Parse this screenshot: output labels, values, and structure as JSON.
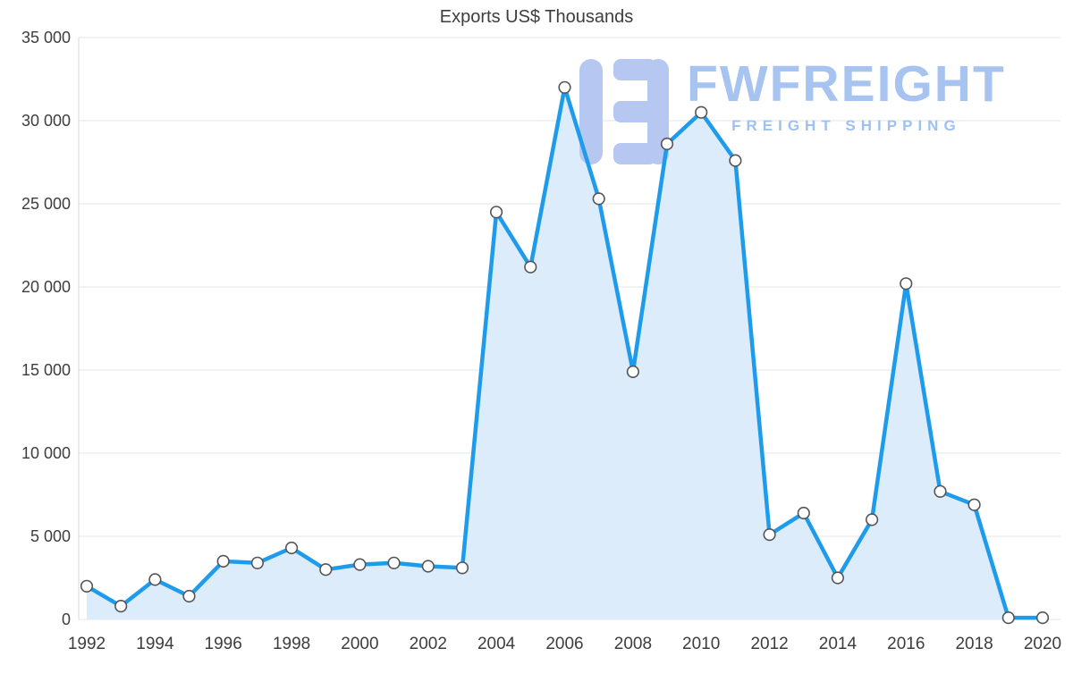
{
  "chart_data": {
    "type": "area",
    "title": "Exports US$ Thousands",
    "x": [
      1992,
      1993,
      1994,
      1995,
      1996,
      1997,
      1998,
      1999,
      2000,
      2001,
      2002,
      2003,
      2004,
      2005,
      2006,
      2007,
      2008,
      2009,
      2010,
      2011,
      2012,
      2013,
      2014,
      2015,
      2016,
      2017,
      2018,
      2019,
      2020
    ],
    "values": [
      2000,
      800,
      2400,
      1400,
      3500,
      3400,
      4300,
      3000,
      3300,
      3400,
      3200,
      3100,
      24500,
      21200,
      32000,
      25300,
      14900,
      28600,
      30500,
      27600,
      5100,
      6400,
      2500,
      6000,
      20200,
      7700,
      6900,
      100,
      100
    ],
    "ylim": [
      0,
      35000
    ],
    "ytick_values": [
      0,
      5000,
      10000,
      15000,
      20000,
      25000,
      30000,
      35000
    ],
    "ytick_labels": [
      "0",
      "5 000",
      "10 000",
      "15 000",
      "20 000",
      "25 000",
      "30 000",
      "35 000"
    ],
    "xtick_years": [
      1992,
      1994,
      1996,
      1998,
      2000,
      2002,
      2004,
      2006,
      2008,
      2010,
      2012,
      2014,
      2016,
      2018,
      2020
    ],
    "xtick_labels": [
      "1992",
      "1994",
      "1996",
      "1998",
      "2000",
      "2002",
      "2004",
      "2006",
      "2008",
      "2010",
      "2012",
      "2014",
      "2016",
      "2018",
      "2020"
    ],
    "grid": true,
    "legend": "none",
    "line_color": "#1e9ceb",
    "fill_color": "#dcecfb",
    "marker_fill": "#ffffff",
    "marker_stroke": "#555555",
    "grid_color": "#e6e6e6",
    "axis_line_color": "#d9d9d9",
    "label_color": "#3d3d3d"
  },
  "watermark": {
    "brand": "FWFREIGHT",
    "tagline": "FREIGHT SHIPPING",
    "brand_color": "#a7c3ef",
    "tagline_color": "#9dc1f3",
    "mark_color": "#b6c8f1"
  }
}
